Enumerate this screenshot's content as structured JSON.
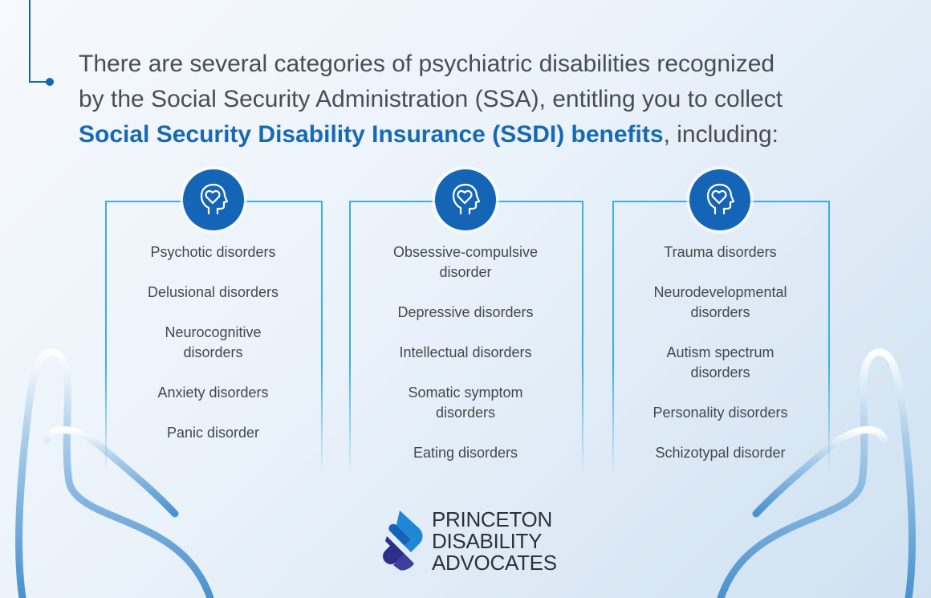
{
  "headline": {
    "line1": "There are several categories of psychiatric disabilities recognized",
    "line2": "by the Social Security Administration (SSA), entitling you to collect",
    "line3_emphasis": "Social Security Disability Insurance (SSDI) benefits",
    "line3_rest": ", including:"
  },
  "columns": [
    {
      "icon": "head-heart-icon",
      "items": [
        "Psychotic disorders",
        "Delusional disorders",
        "Neurocognitive disorders",
        "Anxiety disorders",
        "Panic disorder"
      ]
    },
    {
      "icon": "head-heart-icon",
      "items": [
        "Obsessive-compulsive disorder",
        "Depressive disorders",
        "Intellectual disorders",
        "Somatic symptom disorders",
        "Eating disorders"
      ]
    },
    {
      "icon": "head-heart-icon",
      "items": [
        "Trauma disorders",
        "Neurodevelopmental disorders",
        "Autism spectrum disorders",
        "Personality disorders",
        "Schizotypal disorder"
      ]
    }
  ],
  "logo": {
    "line1": "PRINCETON",
    "line2": "DISABILITY",
    "line3": "ADVOCATES"
  },
  "colors": {
    "accent": "#1769b4",
    "border": "#3aaee8",
    "icon_bg": "#1565b6",
    "text": "#45484c"
  }
}
